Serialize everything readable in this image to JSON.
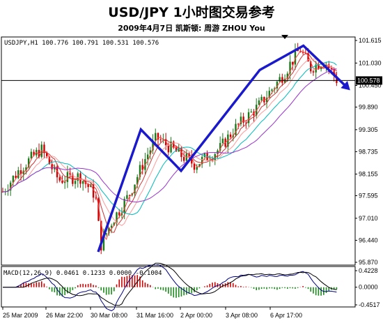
{
  "header": {
    "title": "USD/JPY  1小时图交易参考",
    "subtitle": "2009年4月7日    凯斯顿: 周游 ZHOU You"
  },
  "chart_data": [
    {
      "type": "candlestick",
      "symbol_label": "USDJPY,H1  100.776 100.791 100.531 100.576",
      "y_ticks": [
        "101.615",
        "101.030",
        "100.450",
        "99.890",
        "99.305",
        "98.735",
        "98.155",
        "97.595",
        "97.010",
        "96.440",
        "95.870"
      ],
      "y_tick_values": [
        101.615,
        101.03,
        100.45,
        99.89,
        99.305,
        98.735,
        98.155,
        97.595,
        97.01,
        96.44,
        95.87
      ],
      "ylim": [
        95.87,
        101.615
      ],
      "current_price": "100.578",
      "current_price_value": 100.578,
      "x_labels": [
        "25 Mar 2009",
        "26 Mar 22:00",
        "30 Mar 08:00",
        "31 Mar 16:00",
        "2 Apr 00:00",
        "3 Apr 08:00",
        "6 Apr 17:00"
      ],
      "trend_path": [
        {
          "t": 0.0,
          "p": 97.7
        },
        {
          "t": 0.05,
          "p": 98.3
        },
        {
          "t": 0.11,
          "p": 98.8
        },
        {
          "t": 0.16,
          "p": 98.0
        },
        {
          "t": 0.22,
          "p": 98.1
        },
        {
          "t": 0.265,
          "p": 97.6
        },
        {
          "t": 0.28,
          "p": 96.3
        },
        {
          "t": 0.31,
          "p": 96.9
        },
        {
          "t": 0.36,
          "p": 97.6
        },
        {
          "t": 0.41,
          "p": 98.6
        },
        {
          "t": 0.44,
          "p": 99.1
        },
        {
          "t": 0.5,
          "p": 98.7
        },
        {
          "t": 0.55,
          "p": 98.4
        },
        {
          "t": 0.62,
          "p": 98.8
        },
        {
          "t": 0.66,
          "p": 99.3
        },
        {
          "t": 0.73,
          "p": 99.9
        },
        {
          "t": 0.8,
          "p": 100.7
        },
        {
          "t": 0.85,
          "p": 101.4
        },
        {
          "t": 0.88,
          "p": 100.9
        },
        {
          "t": 0.92,
          "p": 101.1
        },
        {
          "t": 0.955,
          "p": 100.6
        }
      ],
      "drawn_trendline": [
        {
          "t": 0.273,
          "p": 96.14
        },
        {
          "t": 0.395,
          "p": 99.31
        },
        {
          "t": 0.51,
          "p": 98.24
        },
        {
          "t": 0.735,
          "p": 100.85
        },
        {
          "t": 0.86,
          "p": 101.48
        },
        {
          "t": 0.985,
          "p": 100.4
        }
      ],
      "colors": {
        "bull": "#1a7a1a",
        "bear": "#cc0000",
        "trend": "#1a1acc",
        "price_line": "#000000"
      }
    },
    {
      "type": "histogram",
      "label": "MACD(12,26,9) 0.0461 0.1233 0.0000 -0.1004",
      "y_ticks": [
        "0.4228",
        "0.0000",
        "-0.4517"
      ],
      "y_tick_values": [
        0.4228,
        0.0,
        -0.4517
      ],
      "ylim": [
        -0.4517,
        0.4228
      ]
    }
  ]
}
